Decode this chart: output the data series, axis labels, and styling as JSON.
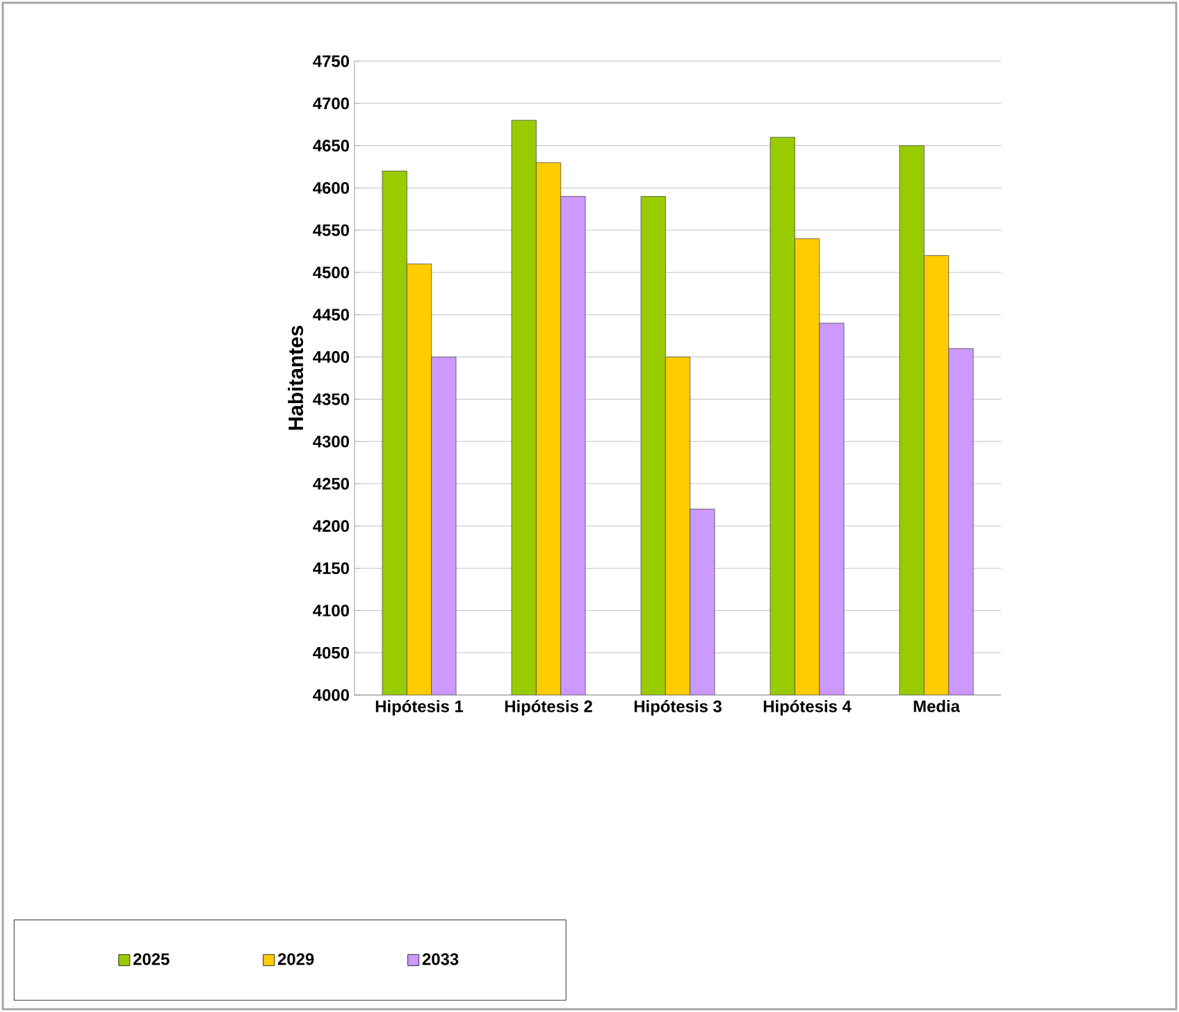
{
  "chart_data": {
    "type": "bar",
    "ylabel": "Habitantes",
    "categories": [
      "Hipótesis 1",
      "Hipótesis 2",
      "Hipótesis 3",
      "Hipótesis 4",
      "Media"
    ],
    "series": [
      {
        "name": "2025",
        "color": "#99cc00",
        "values": [
          4620,
          4680,
          4590,
          4660,
          4650
        ]
      },
      {
        "name": "2029",
        "color": "#ffcc00",
        "values": [
          4510,
          4630,
          4400,
          4540,
          4520
        ]
      },
      {
        "name": "2033",
        "color": "#cc99ff",
        "values": [
          4400,
          4590,
          4220,
          4440,
          4410
        ]
      }
    ],
    "ylim": [
      4000,
      4750
    ],
    "yticks": [
      4000,
      4050,
      4100,
      4150,
      4200,
      4250,
      4300,
      4350,
      4400,
      4450,
      4500,
      4550,
      4600,
      4650,
      4700,
      4750
    ],
    "grid": "y",
    "legend": "bottom left"
  }
}
